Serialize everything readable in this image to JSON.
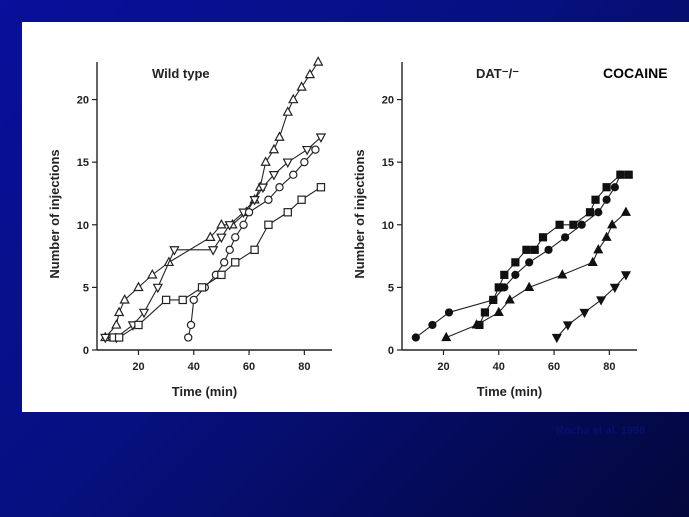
{
  "drug_label": "COCAINE",
  "citation": "Rocha et al. 1998",
  "chart_data": [
    {
      "type": "scatter",
      "title": "Wild type",
      "xlabel": "Time (min)",
      "ylabel": "Number of injections",
      "xlim": [
        5,
        90
      ],
      "ylim": [
        0,
        23
      ],
      "xticks": [
        20,
        40,
        60,
        80
      ],
      "yticks": [
        0,
        5,
        10,
        15,
        20
      ],
      "marker_fill": "open",
      "series": [
        {
          "marker": "triangle-up",
          "points": [
            [
              8,
              1
            ],
            [
              12,
              2
            ],
            [
              13,
              3
            ],
            [
              15,
              4
            ],
            [
              20,
              5
            ],
            [
              25,
              6
            ],
            [
              31,
              7
            ],
            [
              46,
              9
            ],
            [
              50,
              10
            ],
            [
              54,
              10
            ],
            [
              59,
              11
            ],
            [
              62,
              12
            ],
            [
              64,
              13
            ],
            [
              66,
              15
            ],
            [
              69,
              16
            ],
            [
              71,
              17
            ],
            [
              74,
              19
            ],
            [
              76,
              20
            ],
            [
              79,
              21
            ],
            [
              82,
              22
            ],
            [
              85,
              23
            ]
          ]
        },
        {
          "marker": "triangle-down",
          "points": [
            [
              8,
              1
            ],
            [
              12,
              1
            ],
            [
              18,
              2
            ],
            [
              22,
              3
            ],
            [
              27,
              5
            ],
            [
              33,
              8
            ],
            [
              47,
              8
            ],
            [
              50,
              9
            ],
            [
              53,
              10
            ],
            [
              58,
              11
            ],
            [
              62,
              12
            ],
            [
              65,
              13
            ],
            [
              69,
              14
            ],
            [
              74,
              15
            ],
            [
              81,
              16
            ],
            [
              86,
              17
            ]
          ]
        },
        {
          "marker": "circle",
          "points": [
            [
              38,
              1
            ],
            [
              39,
              2
            ],
            [
              40,
              4
            ],
            [
              44,
              5
            ],
            [
              48,
              6
            ],
            [
              51,
              7
            ],
            [
              53,
              8
            ],
            [
              55,
              9
            ],
            [
              58,
              10
            ],
            [
              60,
              11
            ],
            [
              67,
              12
            ],
            [
              71,
              13
            ],
            [
              76,
              14
            ],
            [
              80,
              15
            ],
            [
              84,
              16
            ]
          ]
        },
        {
          "marker": "square",
          "points": [
            [
              11,
              1
            ],
            [
              13,
              1
            ],
            [
              20,
              2
            ],
            [
              30,
              4
            ],
            [
              36,
              4
            ],
            [
              43,
              5
            ],
            [
              50,
              6
            ],
            [
              55,
              7
            ],
            [
              62,
              8
            ],
            [
              67,
              10
            ],
            [
              74,
              11
            ],
            [
              79,
              12
            ],
            [
              86,
              13
            ]
          ]
        }
      ]
    },
    {
      "type": "scatter",
      "title": "DAT⁻/⁻",
      "xlabel": "Time (min)",
      "ylabel": "Number of injections",
      "xlim": [
        5,
        90
      ],
      "ylim": [
        0,
        23
      ],
      "xticks": [
        20,
        40,
        60,
        80
      ],
      "yticks": [
        0,
        5,
        10,
        15,
        20
      ],
      "marker_fill": "filled",
      "series": [
        {
          "marker": "circle",
          "points": [
            [
              10,
              1
            ],
            [
              16,
              2
            ],
            [
              22,
              3
            ],
            [
              38,
              4
            ],
            [
              42,
              5
            ],
            [
              46,
              6
            ],
            [
              51,
              7
            ],
            [
              58,
              8
            ],
            [
              64,
              9
            ],
            [
              70,
              10
            ],
            [
              76,
              11
            ],
            [
              79,
              12
            ],
            [
              82,
              13
            ],
            [
              84,
              14
            ]
          ]
        },
        {
          "marker": "square",
          "points": [
            [
              33,
              2
            ],
            [
              35,
              3
            ],
            [
              38,
              4
            ],
            [
              40,
              5
            ],
            [
              42,
              6
            ],
            [
              46,
              7
            ],
            [
              50,
              8
            ],
            [
              53,
              8
            ],
            [
              56,
              9
            ],
            [
              62,
              10
            ],
            [
              67,
              10
            ],
            [
              73,
              11
            ],
            [
              75,
              12
            ],
            [
              79,
              13
            ],
            [
              84,
              14
            ],
            [
              87,
              14
            ]
          ]
        },
        {
          "marker": "triangle-up",
          "points": [
            [
              21,
              1
            ],
            [
              32,
              2
            ],
            [
              40,
              3
            ],
            [
              44,
              4
            ],
            [
              51,
              5
            ],
            [
              63,
              6
            ],
            [
              74,
              7
            ],
            [
              76,
              8
            ],
            [
              79,
              9
            ],
            [
              81,
              10
            ],
            [
              86,
              11
            ]
          ]
        },
        {
          "marker": "triangle-down",
          "points": [
            [
              61,
              1
            ],
            [
              65,
              2
            ],
            [
              71,
              3
            ],
            [
              77,
              4
            ],
            [
              82,
              5
            ],
            [
              86,
              6
            ]
          ]
        }
      ]
    }
  ]
}
